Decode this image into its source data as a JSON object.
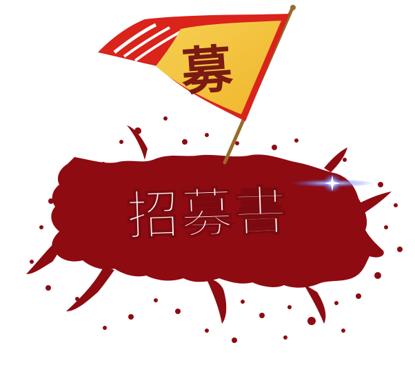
{
  "flag": {
    "character": "募"
  },
  "banner": {
    "title": "招募書"
  },
  "colors": {
    "splash": "#8e0b12",
    "splash_dark": "#7a0a10",
    "flag_field": "#f3c53a",
    "flag_border": "#d9231b",
    "flag_character": "#7a1a12",
    "pole": "#9a6a2a",
    "title_text": "#ffffff",
    "sparkle": "#5a7bff"
  }
}
